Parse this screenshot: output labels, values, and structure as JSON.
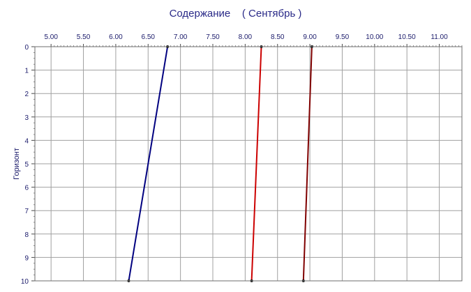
{
  "chart_data": {
    "type": "line",
    "orientation": "depth-profile",
    "title": "Содержание    ( Сентябрь )",
    "xlabel": "",
    "ylabel": "Горизонт",
    "xlim": [
      4.75,
      11.35
    ],
    "ylim": [
      0,
      10
    ],
    "x_ticks": [
      "5.00",
      "5.50",
      "6.00",
      "6.50",
      "7.00",
      "7.50",
      "8.00",
      "8.50",
      "9.00",
      "9.50",
      "10.00",
      "10.50",
      "11.00"
    ],
    "y_ticks": [
      "0",
      "1",
      "2",
      "3",
      "4",
      "5",
      "6",
      "7",
      "8",
      "9",
      "10"
    ],
    "x_axis_position": "top",
    "y_axis_inverted": true,
    "grid": true,
    "series": [
      {
        "color": "#000080",
        "points": [
          {
            "x": 6.8,
            "y": 0
          },
          {
            "x": 6.2,
            "y": 10
          }
        ]
      },
      {
        "color": "#cc0000",
        "points": [
          {
            "x": 8.25,
            "y": 0
          },
          {
            "x": 8.1,
            "y": 10
          }
        ]
      },
      {
        "color": "#800000",
        "points": [
          {
            "x": 9.03,
            "y": 0
          },
          {
            "x": 8.9,
            "y": 10
          }
        ]
      }
    ]
  }
}
